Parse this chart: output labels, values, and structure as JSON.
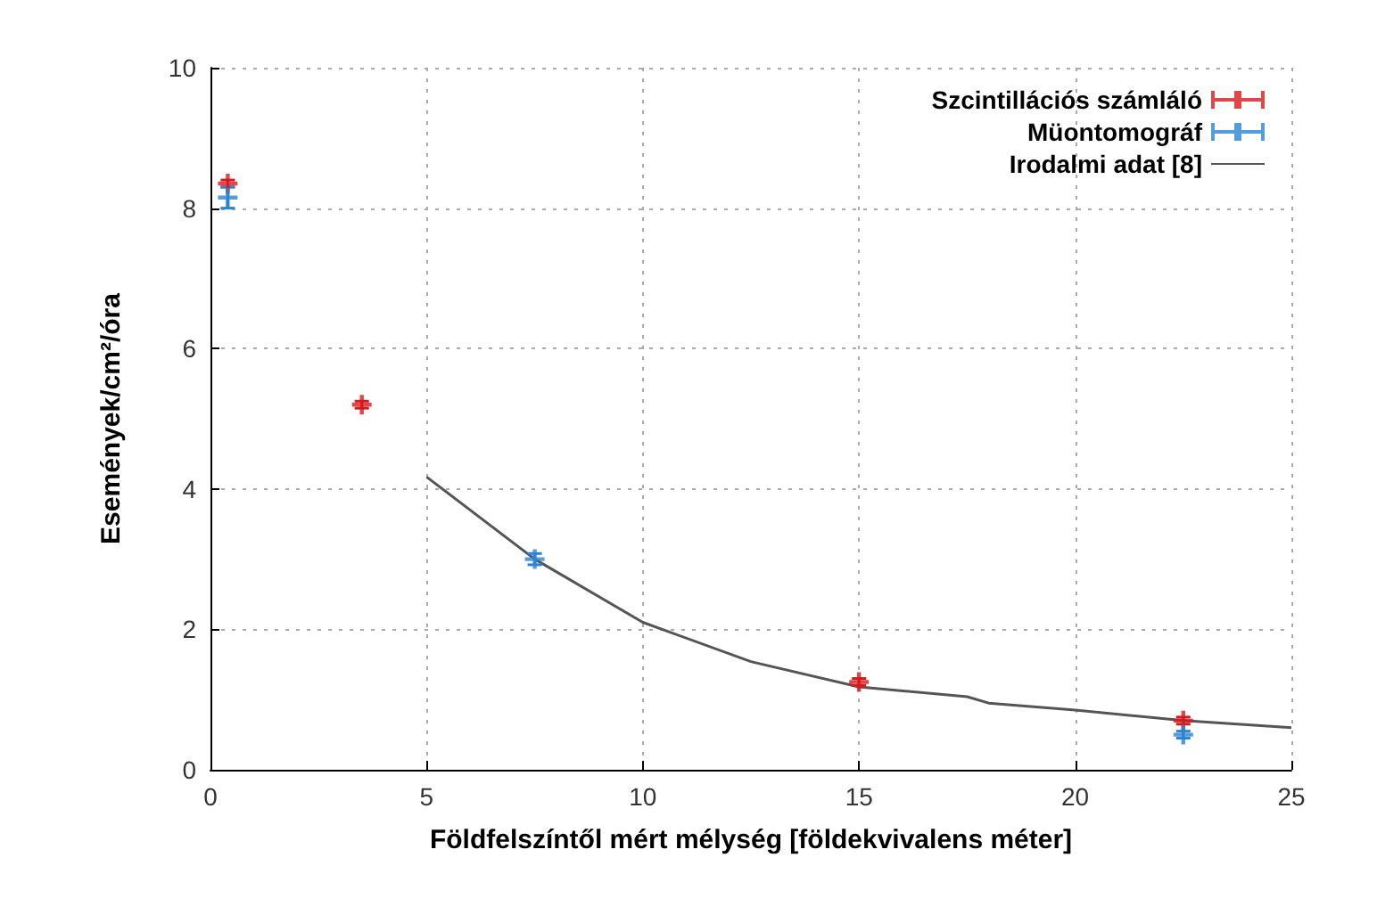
{
  "chart_data": {
    "type": "scatter",
    "xlabel": "Földfelszíntől mért mélység [földekvivalens méter]",
    "ylabel": "Események/cm²/óra",
    "xlim": [
      0,
      25
    ],
    "xticks": [
      0,
      5,
      10,
      15,
      20,
      25
    ],
    "ylim": [
      0,
      10
    ],
    "yticks": [
      0,
      2,
      4,
      6,
      8,
      10
    ],
    "grid": true,
    "legend": "top right",
    "marker": "cross",
    "series": [
      {
        "name": "Szcintillációs számláló",
        "color": "#d7191c",
        "x": [
          0.4,
          3.5,
          15,
          22.5
        ],
        "values": [
          8.35,
          5.2,
          1.25,
          0.7
        ],
        "errors": [
          0.05,
          0.05,
          0.05,
          0.05
        ]
      },
      {
        "name": "Müontomográf",
        "color": "#2b83d6",
        "x": [
          0.4,
          7.5,
          22.5
        ],
        "values": [
          8.15,
          3.0,
          0.5
        ],
        "errors": [
          0.15,
          0.08,
          0.05
        ]
      },
      {
        "name": "Irodalmi adat [8]",
        "type": "line",
        "color": "#555555",
        "marker": "none",
        "x": [
          5,
          7.5,
          10,
          12.5,
          15,
          17.5,
          18,
          20,
          22.5,
          25
        ],
        "values": [
          4.17,
          3.0,
          2.1,
          1.54,
          1.18,
          1.04,
          0.95,
          0.85,
          0.7,
          0.6
        ]
      }
    ]
  }
}
